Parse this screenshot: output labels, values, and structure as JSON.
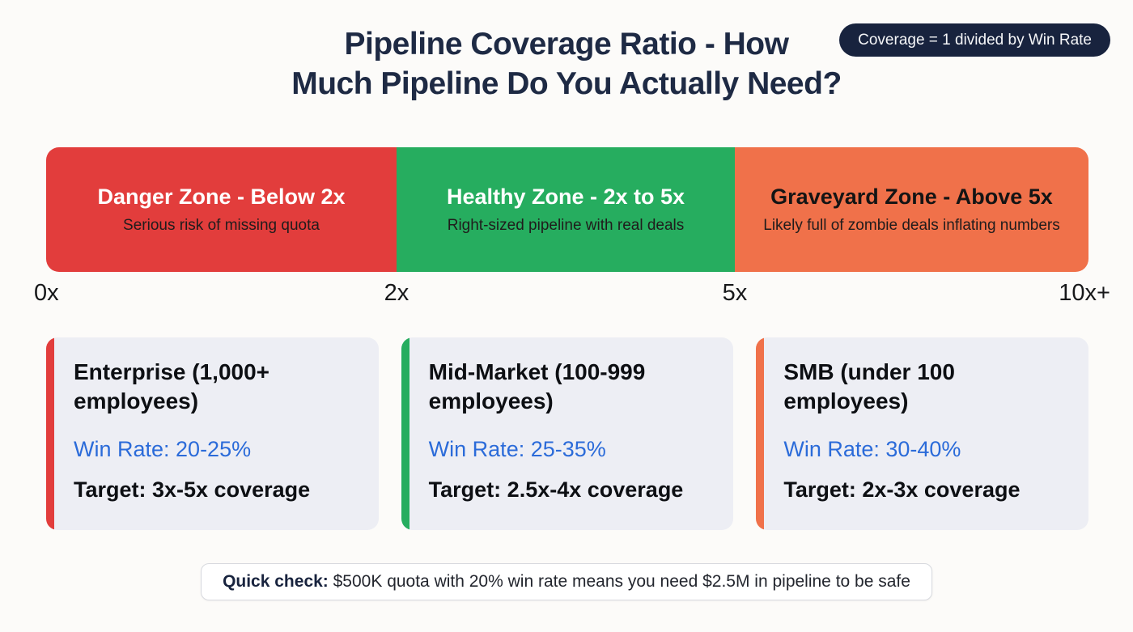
{
  "header": {
    "title_line1": "Pipeline Coverage Ratio - How",
    "title_line2": "Much Pipeline Do You Actually Need?",
    "badge": "Coverage = 1 divided by Win Rate"
  },
  "zones": [
    {
      "name": "Danger Zone - Below 2x",
      "desc": "Serious risk of missing quota",
      "color": "#E23D3C"
    },
    {
      "name": "Healthy Zone - 2x to 5x",
      "desc": "Right-sized pipeline with real deals",
      "color": "#26AD5F"
    },
    {
      "name": "Graveyard Zone - Above 5x",
      "desc": "Likely full of zombie deals inflating numbers",
      "color": "#F0714A"
    }
  ],
  "scale_labels": [
    "0x",
    "2x",
    "5x",
    "10x+"
  ],
  "cards": [
    {
      "title": "Enterprise (1,000+ employees)",
      "win_rate": "Win Rate: 20-25%",
      "target": "Target: 3x-5x coverage",
      "accent_color": "#E23D3C"
    },
    {
      "title": "Mid-Market (100-999 employees)",
      "win_rate": "Win Rate: 25-35%",
      "target": "Target: 2.5x-4x coverage",
      "accent_color": "#26AD5F"
    },
    {
      "title": "SMB (under 100 employees)",
      "win_rate": "Win Rate: 30-40%",
      "target": "Target: 2x-3x coverage",
      "accent_color": "#F0714A"
    }
  ],
  "quick_check": {
    "label": "Quick check:",
    "text": " $500K quota with 20% win rate means you need $2.5M in pipeline to be safe"
  },
  "colors": {
    "background": "#FCFBF9",
    "title_navy": "#1E2A44",
    "badge_bg": "#18233E",
    "danger_red": "#E23D3C",
    "healthy_green": "#26AD5F",
    "graveyard_orange": "#F0714A",
    "card_bg": "#EDEEF4",
    "win_rate_blue": "#2B6BD9"
  }
}
